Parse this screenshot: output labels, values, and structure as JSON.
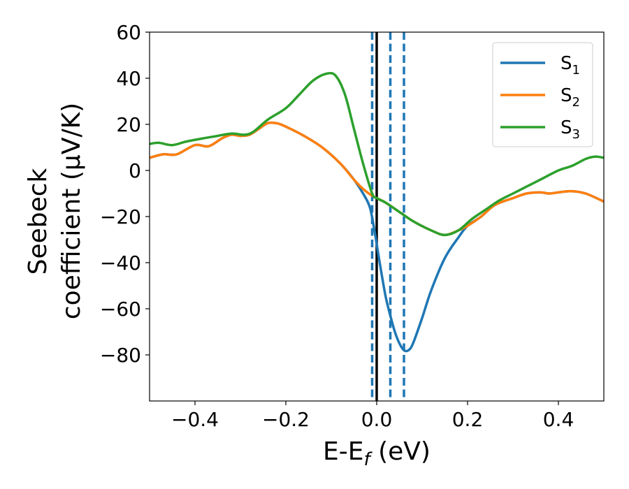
{
  "chart_data": {
    "type": "line",
    "xlabel": {
      "main": "E-E",
      "sub": "f",
      "unit": " (eV)"
    },
    "ylabel": {
      "line1": "Seebeck",
      "line2": "coefficient  (μV/K)"
    },
    "xlim": [
      -0.5,
      0.5
    ],
    "ylim": [
      -100,
      60
    ],
    "xticks": [
      -0.4,
      -0.2,
      0.0,
      0.2,
      0.4
    ],
    "xtick_labels": [
      "−0.4",
      "−0.2",
      "0.0",
      "0.2",
      "0.4"
    ],
    "yticks": [
      -80,
      -60,
      -40,
      -20,
      0,
      20,
      40,
      60
    ],
    "ytick_labels": [
      "−80",
      "−60",
      "−40",
      "−20",
      "0",
      "20",
      "40",
      "60"
    ],
    "grid": false,
    "legend_position": "top-right",
    "vlines": [
      {
        "x": 0.0,
        "style": "solid",
        "color": "#000000"
      },
      {
        "x": -0.01,
        "style": "dashed",
        "color": "#1f77b4"
      },
      {
        "x": 0.03,
        "style": "dashed",
        "color": "#1f77b4"
      },
      {
        "x": 0.06,
        "style": "dashed",
        "color": "#1f77b4"
      }
    ],
    "series": [
      {
        "name": "S",
        "sub": "1",
        "color": "#1f77b4",
        "points": [
          [
            -0.5,
            5.5
          ],
          [
            -0.47,
            7
          ],
          [
            -0.44,
            7
          ],
          [
            -0.4,
            11
          ],
          [
            -0.37,
            10.5
          ],
          [
            -0.34,
            14
          ],
          [
            -0.32,
            15.5
          ],
          [
            -0.3,
            15
          ],
          [
            -0.28,
            15.5
          ],
          [
            -0.26,
            18
          ],
          [
            -0.24,
            20.5
          ],
          [
            -0.22,
            20.5
          ],
          [
            -0.2,
            19
          ],
          [
            -0.16,
            15
          ],
          [
            -0.12,
            10
          ],
          [
            -0.08,
            3
          ],
          [
            -0.05,
            -4
          ],
          [
            -0.03,
            -10
          ],
          [
            -0.015,
            -16
          ],
          [
            -0.005,
            -26
          ],
          [
            0.0,
            -32
          ],
          [
            0.01,
            -44
          ],
          [
            0.02,
            -55
          ],
          [
            0.03,
            -63
          ],
          [
            0.04,
            -70
          ],
          [
            0.05,
            -75
          ],
          [
            0.06,
            -78
          ],
          [
            0.07,
            -78
          ],
          [
            0.08,
            -75
          ],
          [
            0.1,
            -64
          ],
          [
            0.12,
            -52
          ],
          [
            0.15,
            -38
          ],
          [
            0.18,
            -29
          ],
          [
            0.2,
            -24
          ],
          [
            0.23,
            -20
          ],
          [
            0.26,
            -15
          ],
          [
            0.3,
            -12
          ],
          [
            0.33,
            -10
          ],
          [
            0.36,
            -9.5
          ],
          [
            0.38,
            -10
          ],
          [
            0.4,
            -9.5
          ],
          [
            0.43,
            -9
          ],
          [
            0.46,
            -10
          ],
          [
            0.5,
            -13.5
          ]
        ]
      },
      {
        "name": "S",
        "sub": "2",
        "color": "#ff7f0e",
        "points": [
          [
            -0.5,
            5.5
          ],
          [
            -0.47,
            7
          ],
          [
            -0.44,
            7
          ],
          [
            -0.4,
            11
          ],
          [
            -0.37,
            10.5
          ],
          [
            -0.34,
            14
          ],
          [
            -0.32,
            15.5
          ],
          [
            -0.3,
            15
          ],
          [
            -0.28,
            15.5
          ],
          [
            -0.26,
            18
          ],
          [
            -0.24,
            20.5
          ],
          [
            -0.22,
            20.5
          ],
          [
            -0.2,
            19
          ],
          [
            -0.16,
            15
          ],
          [
            -0.12,
            10
          ],
          [
            -0.08,
            3
          ],
          [
            -0.05,
            -4
          ],
          [
            -0.03,
            -8
          ],
          [
            -0.01,
            -11
          ],
          [
            0.0,
            -12
          ],
          [
            0.02,
            -14
          ],
          [
            0.05,
            -18
          ],
          [
            0.08,
            -22
          ],
          [
            0.12,
            -26
          ],
          [
            0.15,
            -28
          ],
          [
            0.18,
            -26
          ],
          [
            0.2,
            -24
          ],
          [
            0.23,
            -20
          ],
          [
            0.26,
            -15
          ],
          [
            0.3,
            -12
          ],
          [
            0.33,
            -10
          ],
          [
            0.36,
            -9.5
          ],
          [
            0.38,
            -10
          ],
          [
            0.4,
            -9.5
          ],
          [
            0.43,
            -9
          ],
          [
            0.46,
            -10
          ],
          [
            0.5,
            -13.5
          ]
        ]
      },
      {
        "name": "S",
        "sub": "3",
        "color": "#2ca02c",
        "points": [
          [
            -0.5,
            11.5
          ],
          [
            -0.48,
            12
          ],
          [
            -0.45,
            11
          ],
          [
            -0.42,
            12.5
          ],
          [
            -0.38,
            14
          ],
          [
            -0.35,
            15
          ],
          [
            -0.32,
            16
          ],
          [
            -0.29,
            15.5
          ],
          [
            -0.27,
            17
          ],
          [
            -0.24,
            22
          ],
          [
            -0.2,
            27
          ],
          [
            -0.17,
            33
          ],
          [
            -0.14,
            39
          ],
          [
            -0.11,
            42
          ],
          [
            -0.09,
            41
          ],
          [
            -0.07,
            33
          ],
          [
            -0.05,
            18
          ],
          [
            -0.03,
            3
          ],
          [
            -0.01,
            -10
          ],
          [
            0.0,
            -12
          ],
          [
            0.02,
            -14
          ],
          [
            0.05,
            -18
          ],
          [
            0.08,
            -22
          ],
          [
            0.12,
            -26
          ],
          [
            0.15,
            -28
          ],
          [
            0.18,
            -26
          ],
          [
            0.21,
            -21
          ],
          [
            0.24,
            -17
          ],
          [
            0.27,
            -13
          ],
          [
            0.3,
            -10
          ],
          [
            0.33,
            -7
          ],
          [
            0.36,
            -4
          ],
          [
            0.4,
            0
          ],
          [
            0.43,
            2
          ],
          [
            0.46,
            5
          ],
          [
            0.48,
            6
          ],
          [
            0.5,
            5.5
          ]
        ]
      }
    ]
  }
}
